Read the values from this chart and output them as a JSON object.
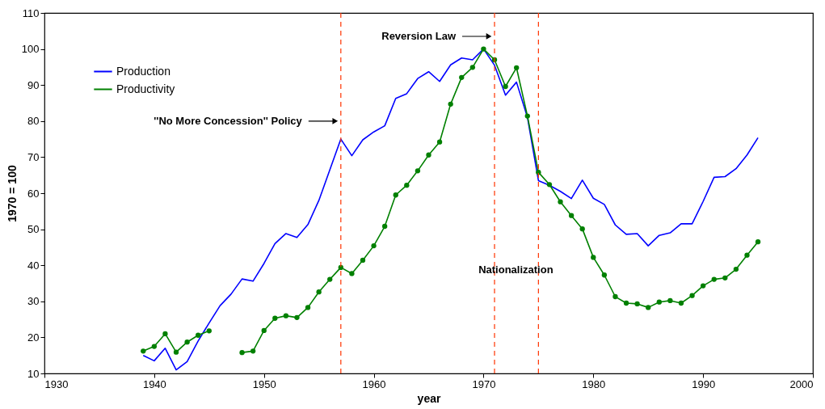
{
  "chart_data": {
    "type": "line",
    "xlabel": "year",
    "ylabel": "1970 = 100",
    "x": [
      1939,
      1940,
      1941,
      1942,
      1943,
      1944,
      1945,
      1946,
      1947,
      1948,
      1949,
      1950,
      1951,
      1952,
      1953,
      1954,
      1955,
      1956,
      1957,
      1958,
      1959,
      1960,
      1961,
      1962,
      1963,
      1964,
      1965,
      1966,
      1967,
      1968,
      1969,
      1970,
      1971,
      1972,
      1973,
      1974,
      1975,
      1976,
      1977,
      1978,
      1979,
      1980,
      1981,
      1982,
      1983,
      1984,
      1985,
      1986,
      1987,
      1988,
      1989,
      1990,
      1991,
      1992,
      1993,
      1994,
      1995
    ],
    "series": [
      {
        "name": "Production",
        "color": "#0000ff",
        "marker": "none",
        "values": [
          15,
          13.5,
          17,
          11,
          13.3,
          19,
          24,
          28.8,
          32,
          36.2,
          35.6,
          40.5,
          46,
          48.8,
          47.7,
          51.3,
          58,
          66.5,
          75,
          70.4,
          74.8,
          77,
          78.7,
          86.3,
          87.6,
          91.8,
          93.7,
          91,
          95.6,
          97.5,
          97,
          100,
          95.5,
          87.2,
          90.8,
          81,
          63.5,
          62.2,
          60.5,
          58.5,
          63.6,
          58.6,
          56.9,
          51.2,
          48.6,
          48.8,
          45.4,
          48.3,
          49,
          51.5,
          51.5,
          57.7,
          64.4,
          64.6,
          66.8,
          70.6,
          75.4
        ]
      },
      {
        "name": "Productivity",
        "color": "#008000",
        "marker": "circle",
        "values": [
          16.2,
          17.5,
          21,
          15.9,
          18.7,
          20.6,
          21.8,
          null,
          null,
          15.8,
          16.2,
          21.9,
          25.3,
          26,
          25.5,
          28.3,
          32.6,
          36.1,
          39.4,
          37.7,
          41.4,
          45.4,
          50.8,
          59.5,
          62.2,
          66.2,
          70.6,
          74.2,
          84.7,
          92.1,
          94.9,
          100,
          97,
          89.6,
          94.8,
          81.4,
          65.8,
          62.4,
          57.6,
          53.8,
          50.1,
          42.2,
          37.3,
          31.3,
          29.5,
          29.3,
          28.3,
          29.8,
          30.2,
          29.5,
          31.6,
          34.3,
          36.1,
          36.5,
          38.9,
          42.8,
          46.5
        ]
      }
    ],
    "xlim": [
      1930,
      2000
    ],
    "xticks": [
      1930,
      1940,
      1950,
      1960,
      1970,
      1980,
      1990,
      2000
    ],
    "ylim": [
      10,
      110
    ],
    "yticks": [
      10,
      20,
      30,
      40,
      50,
      60,
      70,
      80,
      90,
      100,
      110
    ],
    "ref_lines": [
      {
        "axis": "x",
        "value": 1957,
        "color": "#ff3300",
        "line_style": "dashed"
      },
      {
        "axis": "x",
        "value": 1971,
        "color": "#ff3300",
        "line_style": "dashed"
      },
      {
        "axis": "x",
        "value": 1975,
        "color": "#ff3300",
        "line_style": "dashed",
        "label": "Nationalization"
      }
    ],
    "annotations": [
      {
        "text": "''No More Concession'' Policy",
        "x": 1957,
        "y": 80
      },
      {
        "text": "Reversion Law",
        "x": 1971,
        "y": 103.5
      }
    ],
    "grid": false,
    "legend": "top left",
    "line_style": "solid"
  }
}
